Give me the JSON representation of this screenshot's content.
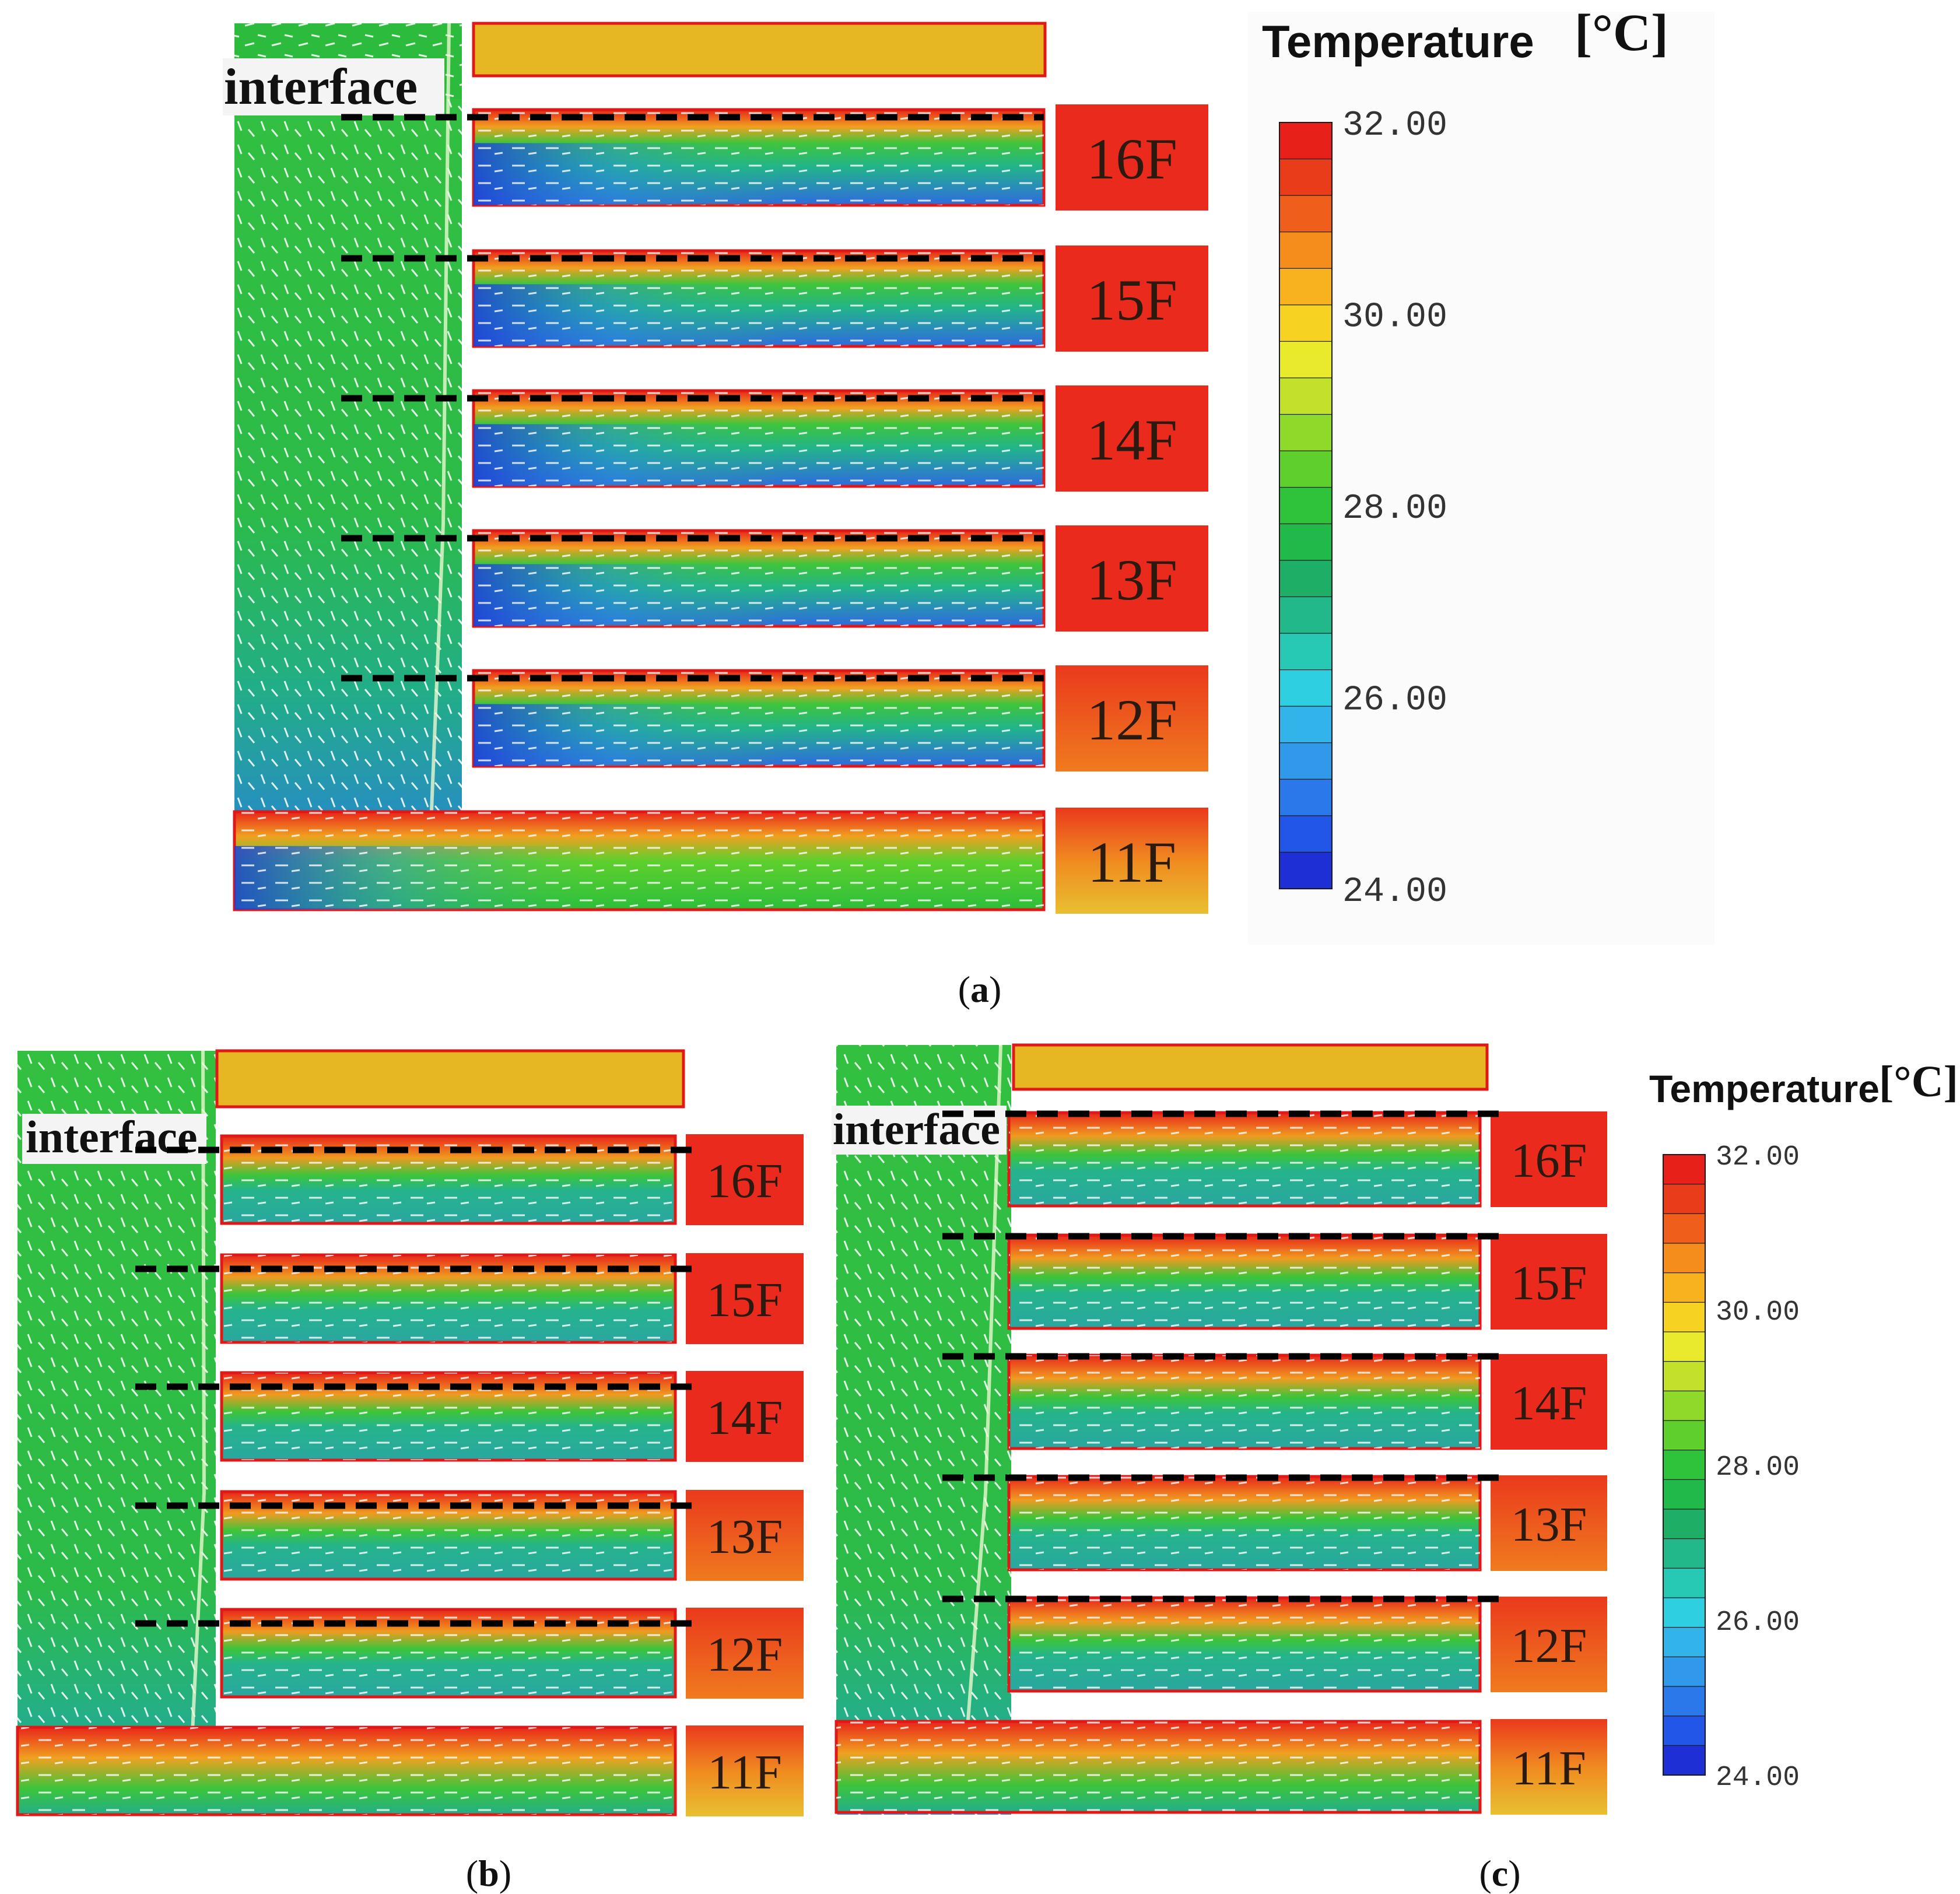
{
  "figure": {
    "panels": [
      {
        "id": "a",
        "caption_label": "a",
        "interface_label": "interface",
        "floors": [
          "16F",
          "15F",
          "14F",
          "13F",
          "12F",
          "11F"
        ],
        "legend": {
          "title": "Temperature",
          "unit": "[°C]",
          "max": 32,
          "min": 24,
          "tick_labels": [
            "32.00",
            "30.00",
            "28.00",
            "26.00",
            "24.00"
          ]
        }
      },
      {
        "id": "b",
        "caption_label": "b",
        "interface_label": "interface",
        "floors": [
          "16F",
          "15F",
          "14F",
          "13F",
          "12F",
          "11F"
        ]
      },
      {
        "id": "c",
        "caption_label": "c",
        "interface_label": "interface",
        "floors": [
          "16F",
          "15F",
          "14F",
          "13F",
          "12F",
          "11F"
        ],
        "legend": {
          "title": "Temperature",
          "unit": "[°C]",
          "max": 32,
          "min": 24,
          "tick_labels": [
            "32.00",
            "30.00",
            "28.00",
            "26.00",
            "24.00"
          ]
        }
      }
    ],
    "colors": {
      "scale": [
        "#1e2fd6",
        "#2156e8",
        "#2a78ea",
        "#3099ea",
        "#32b4ea",
        "#2fcfe2",
        "#27c9b4",
        "#22b88a",
        "#1fae66",
        "#20b94a",
        "#2fc33b",
        "#5fcf2d",
        "#8fd92a",
        "#c3e12b",
        "#eaea2c",
        "#f6d323",
        "#f7b21e",
        "#f48d1c",
        "#ef5e1b",
        "#e83c1a",
        "#e8201a"
      ],
      "roof": "#e6b722",
      "room_hot": "#ea2a1d",
      "room_green": "#2cbf3a",
      "room_cool": "#2aa6a0",
      "room_blue": "#2f5fe0",
      "atrium_green": "#39c244",
      "atrium_teal": "#23ae8a",
      "atrium_blue": "#2f7fe0",
      "outline": "#e01818",
      "dash": "#000000"
    }
  }
}
